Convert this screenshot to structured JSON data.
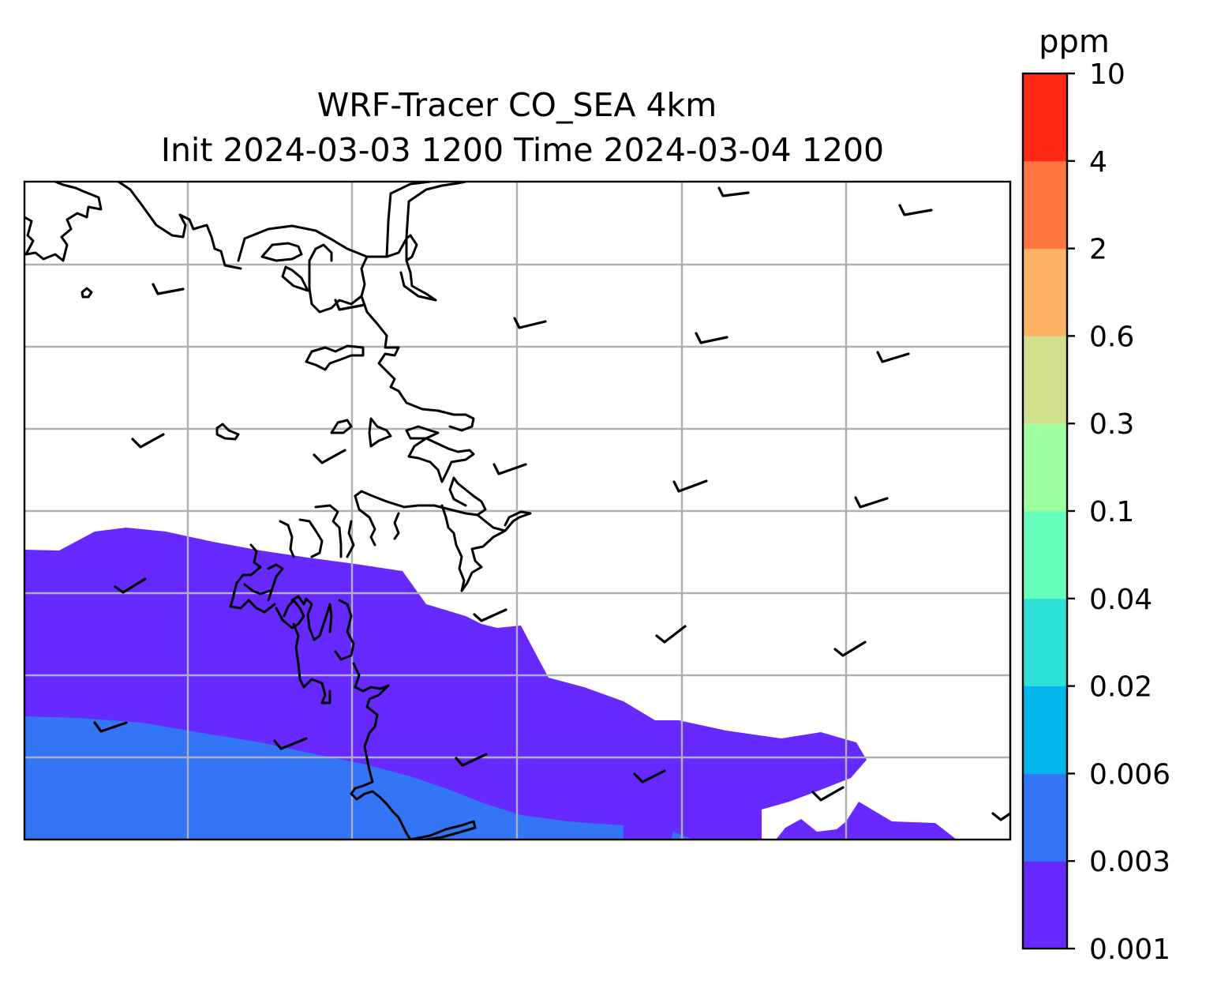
{
  "figure": {
    "title_line1": "WRF-Tracer CO_SEA 4km",
    "title_line2": "Init 2024-03-03 1200 Time 2024-03-04 1200"
  },
  "colorbar": {
    "unit": "ppm",
    "levels": [
      "0.001",
      "0.003",
      "0.006",
      "0.02",
      "0.04",
      "0.1",
      "0.3",
      "0.6",
      "2",
      "4",
      "10"
    ],
    "colors": [
      "#6629ff",
      "#3375f5",
      "#00b5eb",
      "#2ee0d6",
      "#66ffbd",
      "#9eff9e",
      "#d1e08a",
      "#ffb366",
      "#ff7542",
      "#ff2916"
    ]
  },
  "map": {
    "gridlines": true,
    "coastlines": true,
    "wind_barbs": true,
    "filled_levels_visible": [
      "0.001",
      "0.003"
    ]
  }
}
